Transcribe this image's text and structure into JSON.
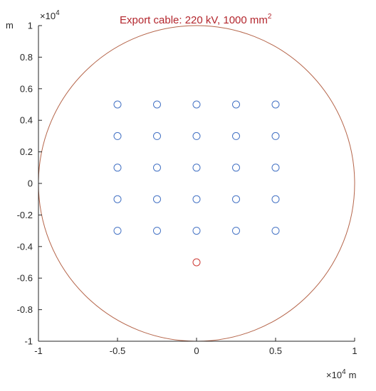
{
  "chart_data": {
    "type": "scatter",
    "title": "Export cable: 220 kV, 1000 mm",
    "title_superscript": "2",
    "x_unit": "m",
    "y_unit": "m",
    "x_exponent_base": "×10",
    "x_exponent_power": "4",
    "y_exponent_base": "×10",
    "y_exponent_power": "4",
    "xlim": [
      -10000,
      10000
    ],
    "ylim": [
      -10000,
      10000
    ],
    "x_ticks": [
      -10000,
      -5000,
      0,
      5000,
      10000
    ],
    "x_tick_labels": [
      "-1",
      "-0.5",
      "0",
      "0.5",
      "1"
    ],
    "y_ticks": [
      -10000,
      -8000,
      -6000,
      -4000,
      -2000,
      0,
      2000,
      4000,
      6000,
      8000,
      10000
    ],
    "y_tick_labels": [
      "-1",
      "-0.8",
      "-0.6",
      "-0.4",
      "-0.2",
      "0",
      "0.2",
      "0.4",
      "0.6",
      "0.8",
      "1"
    ],
    "grid": false,
    "colors": {
      "turbines": "#4472c4",
      "substation": "#cd3b35",
      "boundary": "#b5654a",
      "axis": "#262626",
      "title": "#b3262d"
    },
    "series": [
      {
        "marker": "circle",
        "color": "#4472c4",
        "x": [
          -5000,
          -2500,
          0,
          2500,
          5000,
          -5000,
          -2500,
          0,
          2500,
          5000,
          -5000,
          -2500,
          0,
          2500,
          5000,
          -5000,
          -2500,
          0,
          2500,
          5000,
          -5000,
          -2500,
          0,
          2500,
          5000
        ],
        "y": [
          5000,
          5000,
          5000,
          5000,
          5000,
          3000,
          3000,
          3000,
          3000,
          3000,
          1000,
          1000,
          1000,
          1000,
          1000,
          -1000,
          -1000,
          -1000,
          -1000,
          -1000,
          -3000,
          -3000,
          -3000,
          -3000,
          -3000
        ]
      },
      {
        "marker": "circle",
        "color": "#cd3b35",
        "x": [
          0
        ],
        "y": [
          -5000
        ]
      }
    ],
    "boundary": {
      "shape": "circle",
      "center": [
        0,
        0
      ],
      "radius": 10000,
      "color": "#b5654a"
    }
  }
}
